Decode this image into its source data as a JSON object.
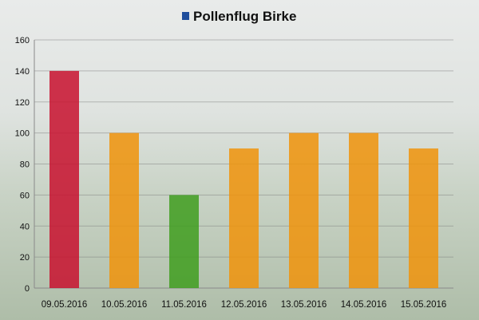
{
  "chart_data": {
    "type": "bar",
    "title": "Pollenflug Birke",
    "legend": {
      "label": "Pollenflug Birke",
      "color": "#1f4e9c",
      "placement": "top"
    },
    "categories": [
      "09.05.2016",
      "10.05.2016",
      "11.05.2016",
      "12.05.2016",
      "13.05.2016",
      "14.05.2016",
      "15.05.2016"
    ],
    "values": [
      140,
      100,
      60,
      90,
      100,
      100,
      90
    ],
    "bar_colors": [
      "#c8102e",
      "#f0930a",
      "#3f9e1e",
      "#f0930a",
      "#f0930a",
      "#f0930a",
      "#f0930a"
    ],
    "ylim": [
      0,
      160
    ],
    "yticks": [
      0,
      20,
      40,
      60,
      80,
      100,
      120,
      140,
      160
    ],
    "ytick_labels": [
      "0",
      "20",
      "40",
      "60",
      "80",
      "100",
      "120",
      "140",
      "160"
    ],
    "grid": true,
    "xlabel": "",
    "ylabel": ""
  }
}
